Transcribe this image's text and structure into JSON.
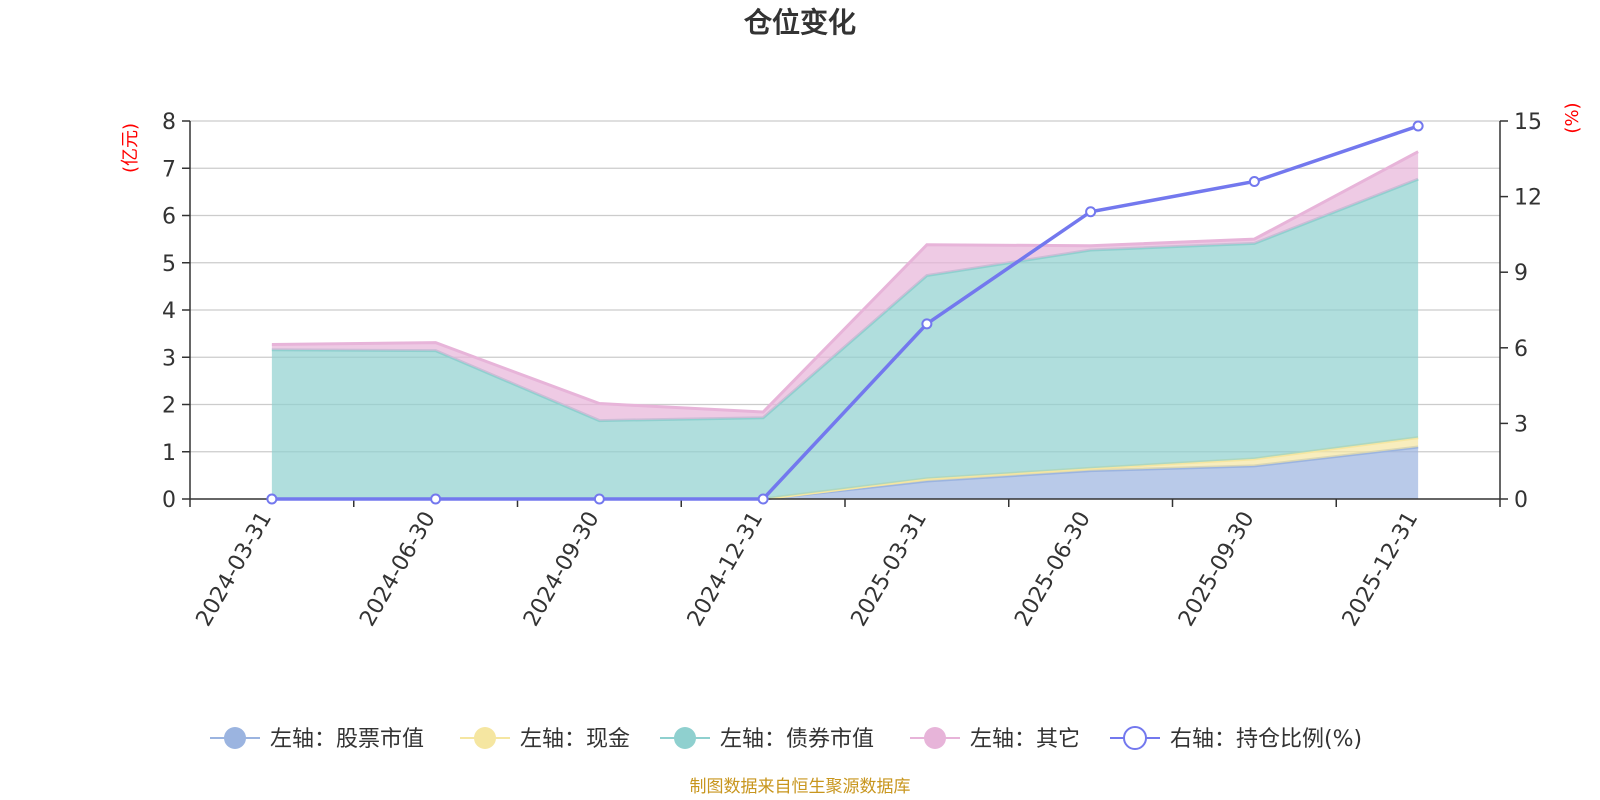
{
  "chart_data": {
    "type": "area",
    "title": "仓位变化",
    "categories": [
      "2024-03-31",
      "2024-06-30",
      "2024-09-30",
      "2024-12-31",
      "2025-03-31",
      "2025-06-30",
      "2025-09-30",
      "2025-12-31"
    ],
    "left_axis": {
      "unit": "(亿元)",
      "ylim": [
        0,
        8
      ],
      "ticks": [
        0,
        1,
        2,
        3,
        4,
        5,
        6,
        7,
        8
      ]
    },
    "right_axis": {
      "unit": "(%)",
      "ylim": [
        0,
        15
      ],
      "ticks": [
        0,
        3,
        6,
        9,
        12,
        15
      ]
    },
    "series": [
      {
        "name": "左轴：股票市值",
        "axis": "left",
        "stacked": true,
        "values": [
          0,
          0,
          0,
          0,
          0.38,
          0.6,
          0.7,
          1.1
        ]
      },
      {
        "name": "左轴：现金",
        "axis": "left",
        "stacked": true,
        "values": [
          0,
          0,
          0,
          0,
          0.05,
          0.05,
          0.15,
          0.2
        ]
      },
      {
        "name": "左轴：债券市值",
        "axis": "left",
        "stacked": true,
        "values": [
          3.16,
          3.14,
          1.66,
          1.72,
          4.3,
          4.62,
          4.56,
          5.47
        ]
      },
      {
        "name": "左轴：其它",
        "axis": "left",
        "stacked": true,
        "values": [
          0.11,
          0.17,
          0.36,
          0.12,
          0.65,
          0.09,
          0.09,
          0.58
        ]
      },
      {
        "name": "右轴：持仓比例(%)",
        "axis": "right",
        "type": "line",
        "values": [
          0,
          0,
          0,
          0,
          6.95,
          11.4,
          12.6,
          14.8
        ]
      }
    ],
    "colors": {
      "stock": "#9bb4e0",
      "cash": "#f5e6a1",
      "bond": "#8fd0cf",
      "other": "#e7b4d9",
      "ratio": "#7378ee",
      "grid": "#cccccc",
      "axis": "#333333"
    },
    "grid": true,
    "legend": "bottom",
    "source": "制图数据来自恒生聚源数据库"
  }
}
